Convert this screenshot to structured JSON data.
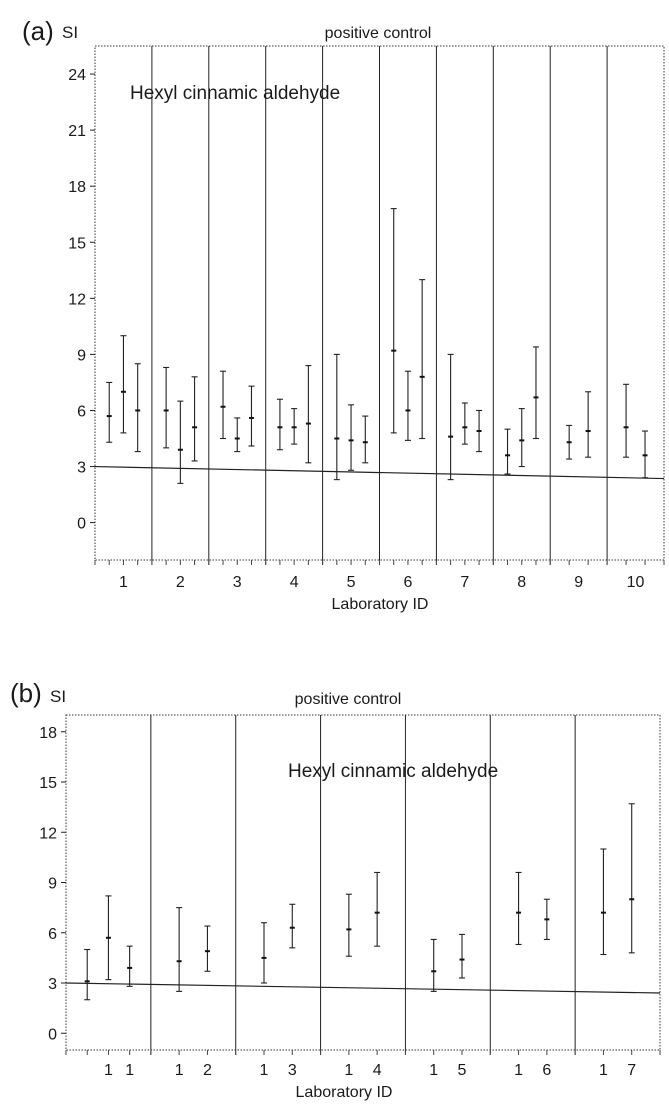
{
  "chart_data": [
    {
      "type": "errorbar",
      "panel_label": "(a)",
      "ylabel": "SI",
      "title": "positive control",
      "annotation": "Hexyl cinnamic aldehyde",
      "xlabel": "Laboratory ID",
      "ylim": [
        -2,
        25.5
      ],
      "yticks": [
        0,
        3,
        6,
        9,
        12,
        15,
        18,
        21,
        24
      ],
      "threshold_line": 3,
      "grid": false,
      "groups": [
        {
          "label": "1",
          "series": [
            {
              "mean": 5.7,
              "low": 4.3,
              "high": 7.5
            },
            {
              "mean": 7.0,
              "low": 4.8,
              "high": 10.0
            },
            {
              "mean": 6.0,
              "low": 3.8,
              "high": 8.5
            }
          ]
        },
        {
          "label": "2",
          "series": [
            {
              "mean": 6.0,
              "low": 4.0,
              "high": 8.3
            },
            {
              "mean": 3.9,
              "low": 2.1,
              "high": 6.5
            },
            {
              "mean": 5.1,
              "low": 3.3,
              "high": 7.8
            }
          ]
        },
        {
          "label": "3",
          "series": [
            {
              "mean": 6.2,
              "low": 4.5,
              "high": 8.1
            },
            {
              "mean": 4.5,
              "low": 3.8,
              "high": 5.6
            },
            {
              "mean": 5.6,
              "low": 4.1,
              "high": 7.3
            }
          ]
        },
        {
          "label": "4",
          "series": [
            {
              "mean": 5.1,
              "low": 3.9,
              "high": 6.6
            },
            {
              "mean": 5.1,
              "low": 4.2,
              "high": 6.1
            },
            {
              "mean": 5.3,
              "low": 3.2,
              "high": 8.4
            }
          ]
        },
        {
          "label": "5",
          "series": [
            {
              "mean": 4.5,
              "low": 2.3,
              "high": 9.0
            },
            {
              "mean": 4.4,
              "low": 2.8,
              "high": 6.3
            },
            {
              "mean": 4.3,
              "low": 3.2,
              "high": 5.7
            }
          ]
        },
        {
          "label": "6",
          "series": [
            {
              "mean": 9.2,
              "low": 4.8,
              "high": 16.8
            },
            {
              "mean": 6.0,
              "low": 4.4,
              "high": 8.1
            },
            {
              "mean": 7.8,
              "low": 4.5,
              "high": 13.0
            }
          ]
        },
        {
          "label": "7",
          "series": [
            {
              "mean": 4.6,
              "low": 2.3,
              "high": 9.0
            },
            {
              "mean": 5.1,
              "low": 4.2,
              "high": 6.4
            },
            {
              "mean": 4.9,
              "low": 3.8,
              "high": 6.0
            }
          ]
        },
        {
          "label": "8",
          "series": [
            {
              "mean": 3.6,
              "low": 2.6,
              "high": 5.0
            },
            {
              "mean": 4.4,
              "low": 3.0,
              "high": 6.1
            },
            {
              "mean": 6.7,
              "low": 4.5,
              "high": 9.4
            }
          ]
        },
        {
          "label": "9",
          "series": [
            {
              "mean": 4.3,
              "low": 3.4,
              "high": 5.2
            },
            {
              "mean": 4.9,
              "low": 3.5,
              "high": 7.0
            }
          ]
        },
        {
          "label": "10",
          "series": [
            {
              "mean": 5.1,
              "low": 3.5,
              "high": 7.4
            },
            {
              "mean": 3.6,
              "low": 2.4,
              "high": 4.9
            }
          ]
        }
      ]
    },
    {
      "type": "errorbar",
      "panel_label": "(b)",
      "ylabel": "SI",
      "title": "positive control",
      "annotation": "Hexyl cinnamic aldehyde",
      "xlabel": "Laboratory ID",
      "ylim": [
        -1,
        19
      ],
      "yticks": [
        0,
        3,
        6,
        9,
        12,
        15,
        18
      ],
      "threshold_line": 3,
      "grid": false,
      "groups": [
        {
          "ticks": [
            "",
            "1",
            "1"
          ],
          "series": [
            {
              "mean": 3.1,
              "low": 2.0,
              "high": 5.0
            },
            {
              "mean": 5.7,
              "low": 3.2,
              "high": 8.2
            },
            {
              "mean": 3.9,
              "low": 2.8,
              "high": 5.2
            }
          ]
        },
        {
          "ticks": [
            "1",
            "2"
          ],
          "series": [
            {
              "mean": 4.3,
              "low": 2.5,
              "high": 7.5
            },
            {
              "mean": 4.9,
              "low": 3.7,
              "high": 6.4
            }
          ]
        },
        {
          "ticks": [
            "1",
            "3"
          ],
          "series": [
            {
              "mean": 4.5,
              "low": 3.0,
              "high": 6.6
            },
            {
              "mean": 6.3,
              "low": 5.1,
              "high": 7.7
            }
          ]
        },
        {
          "ticks": [
            "1",
            "4"
          ],
          "series": [
            {
              "mean": 6.2,
              "low": 4.6,
              "high": 8.3
            },
            {
              "mean": 7.2,
              "low": 5.2,
              "high": 9.6
            }
          ]
        },
        {
          "ticks": [
            "1",
            "5"
          ],
          "series": [
            {
              "mean": 3.7,
              "low": 2.5,
              "high": 5.6
            },
            {
              "mean": 4.4,
              "low": 3.3,
              "high": 5.9
            }
          ]
        },
        {
          "ticks": [
            "1",
            "6"
          ],
          "series": [
            {
              "mean": 7.2,
              "low": 5.3,
              "high": 9.6
            },
            {
              "mean": 6.8,
              "low": 5.6,
              "high": 8.0
            }
          ]
        },
        {
          "ticks": [
            "1",
            "7"
          ],
          "series": [
            {
              "mean": 7.2,
              "low": 4.7,
              "high": 11.0
            },
            {
              "mean": 8.0,
              "low": 4.8,
              "high": 13.7
            }
          ]
        }
      ]
    }
  ]
}
